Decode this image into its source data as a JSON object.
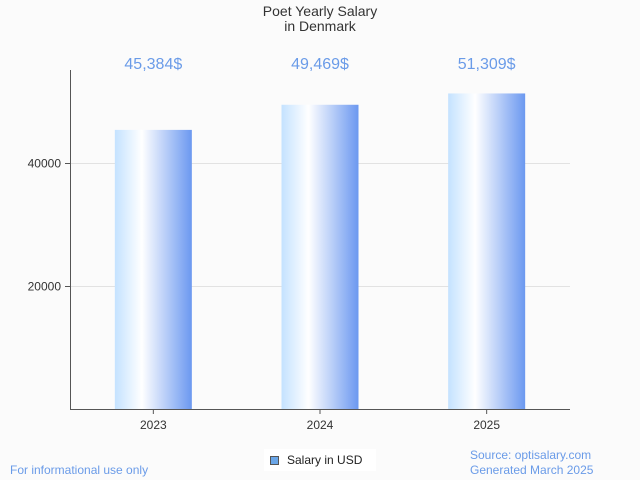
{
  "chart_data": {
    "type": "bar",
    "title": [
      "Poet Yearly Salary",
      "in Denmark"
    ],
    "categories": [
      "2023",
      "2024",
      "2025"
    ],
    "values": [
      45384,
      49469,
      51309
    ],
    "value_labels": [
      "45,384$",
      "49,469$",
      "51,309$"
    ],
    "yticks": [
      20000,
      40000
    ],
    "ytick_labels": [
      "20000",
      "40000"
    ],
    "ylim": [
      0,
      55000
    ],
    "xlabel": "",
    "ylabel": "",
    "grid": true,
    "legend": {
      "label": "Salary in USD",
      "placement": "bottom-center"
    },
    "colors": {
      "bar_light": "#c4e2ff",
      "bar_dark": "#6b98f0",
      "label": "#6a9be8"
    }
  },
  "footer": {
    "left": "For informational use only",
    "source": "Source: optisalary.com",
    "generated": "Generated March 2025"
  }
}
